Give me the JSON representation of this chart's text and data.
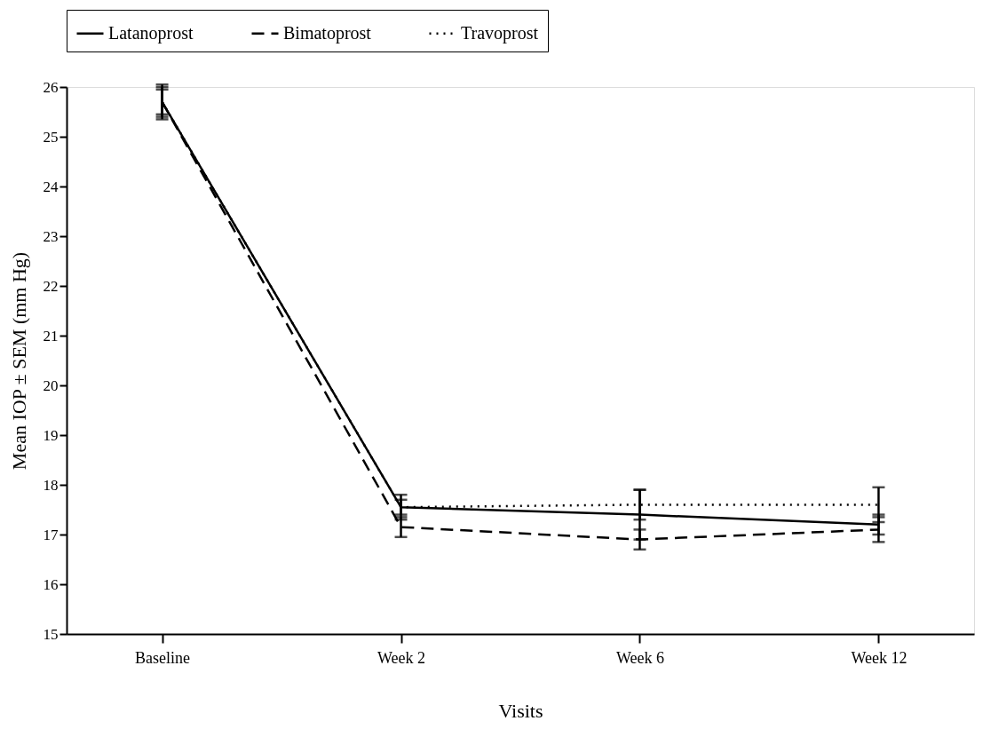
{
  "chart_data": {
    "type": "line",
    "xlabel": "Visits",
    "ylabel": "Mean IOP ± SEM (mm Hg)",
    "categories": [
      "Baseline",
      "Week 2",
      "Week 6",
      "Week 12"
    ],
    "ylim": [
      15,
      26
    ],
    "yticks": [
      15,
      16,
      17,
      18,
      19,
      20,
      21,
      22,
      23,
      24,
      25,
      26
    ],
    "legend": "top",
    "grid": false,
    "marker": "none",
    "series": [
      {
        "name": "Latanoprost",
        "color": "#000000",
        "line_style": "solid",
        "values": [
          25.7,
          17.55,
          17.4,
          17.2
        ],
        "errors": [
          0.35,
          0.25,
          0.5,
          0.2
        ]
      },
      {
        "name": "Bimatoprost",
        "color": "#000000",
        "line_style": "dashed",
        "values": [
          25.7,
          17.15,
          16.9,
          17.1
        ],
        "errors": [
          0.25,
          0.2,
          0.2,
          0.25
        ]
      },
      {
        "name": "Travoprost",
        "color": "#000000",
        "line_style": "dotted",
        "values": [
          25.7,
          17.55,
          17.6,
          17.6
        ],
        "errors": [
          0.3,
          0.15,
          0.3,
          0.35
        ]
      }
    ]
  }
}
